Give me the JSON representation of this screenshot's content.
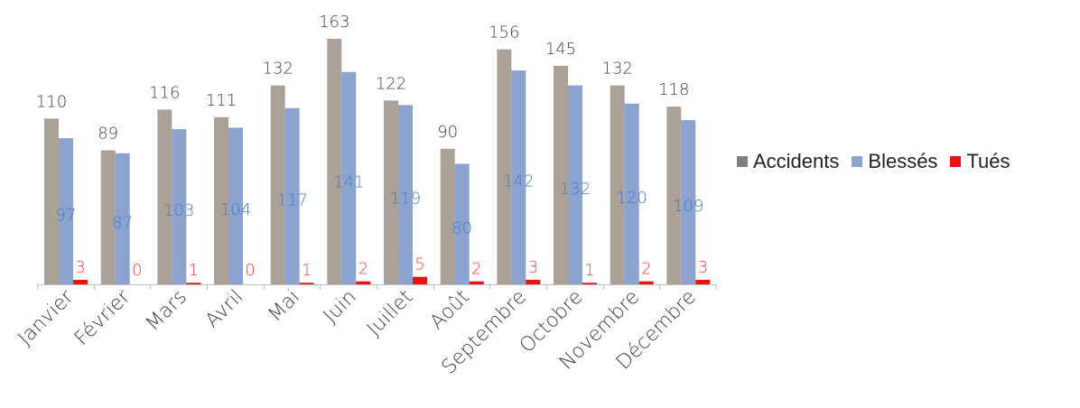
{
  "chart_data": {
    "type": "bar",
    "categories": [
      "Janvier",
      "Février",
      "Mars",
      "Avril",
      "Mai",
      "Juin",
      "Juillet",
      "Août",
      "Septembre",
      "Octobre",
      "Novembre",
      "Décembre"
    ],
    "series": [
      {
        "name": "Accidents",
        "color": "#aca196",
        "label_color": "#404040",
        "values": [
          110,
          89,
          116,
          111,
          132,
          163,
          122,
          90,
          156,
          145,
          132,
          118
        ]
      },
      {
        "name": "Blessés",
        "color": "#8da3cf",
        "label_color": "#4a7bbf",
        "values": [
          97,
          87,
          103,
          104,
          117,
          141,
          119,
          80,
          142,
          132,
          120,
          109
        ]
      },
      {
        "name": "Tués",
        "color": "#ee1111",
        "label_color": "#ff3b3b",
        "values": [
          3,
          0,
          1,
          0,
          1,
          2,
          5,
          2,
          3,
          1,
          2,
          3
        ]
      }
    ],
    "ylim": [
      0,
      163
    ],
    "grid": false,
    "legend_position": "right",
    "title": "",
    "xlabel": "",
    "ylabel": ""
  }
}
